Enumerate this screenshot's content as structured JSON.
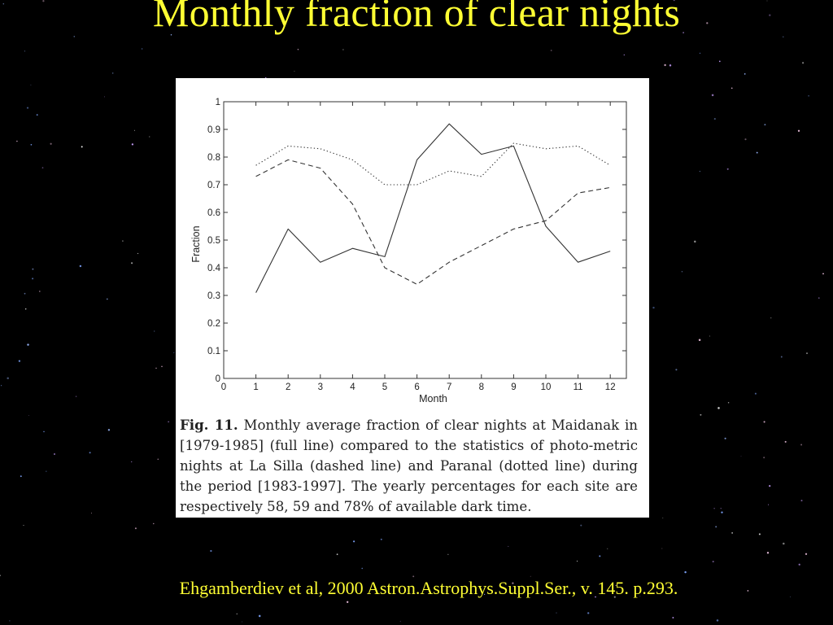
{
  "slide": {
    "title": "Monthly fraction of clear nights",
    "citation": "Ehgamberdiev et al, 2000  Astron.Astrophys.Suppl.Ser., v. 145. p.293.",
    "title_color": "#ffff33",
    "background_color": "#000000"
  },
  "figure": {
    "caption_label": "Fig. 11.",
    "caption_text": "Monthly average fraction of clear nights at Maidanak in [1979-1985] (full line) compared to the statistics of photo-metric nights at La Silla (dashed line) and Paranal (dotted line) during the period [1983-1997]. The yearly percentages for each site are respectively 58, 59 and 78% of available dark time."
  },
  "chart_data": {
    "type": "line",
    "title": "",
    "xlabel": "Month",
    "ylabel": "Fraction",
    "xlim": [
      0,
      12.5
    ],
    "ylim": [
      0,
      1
    ],
    "xticks": [
      "0",
      "1",
      "2",
      "3",
      "4",
      "5",
      "6",
      "7",
      "8",
      "9",
      "10",
      "11",
      "12"
    ],
    "yticks": [
      "0",
      "0.1",
      "0.2",
      "0.3",
      "0.4",
      "0.5",
      "0.6",
      "0.7",
      "0.8",
      "0.9",
      "1"
    ],
    "grid": false,
    "legend": "none",
    "x": [
      1,
      2,
      3,
      4,
      5,
      6,
      7,
      8,
      9,
      10,
      11,
      12
    ],
    "series": [
      {
        "style": "solid",
        "values": [
          0.31,
          0.54,
          0.42,
          0.47,
          0.44,
          0.79,
          0.92,
          0.81,
          0.84,
          0.55,
          0.42,
          0.46
        ]
      },
      {
        "style": "dashed",
        "values": [
          0.73,
          0.79,
          0.76,
          0.63,
          0.4,
          0.34,
          0.42,
          0.48,
          0.54,
          0.57,
          0.67,
          0.69
        ]
      },
      {
        "style": "dotted",
        "values": [
          0.77,
          0.84,
          0.83,
          0.79,
          0.7,
          0.7,
          0.75,
          0.73,
          0.85,
          0.83,
          0.84,
          0.77
        ]
      }
    ]
  }
}
